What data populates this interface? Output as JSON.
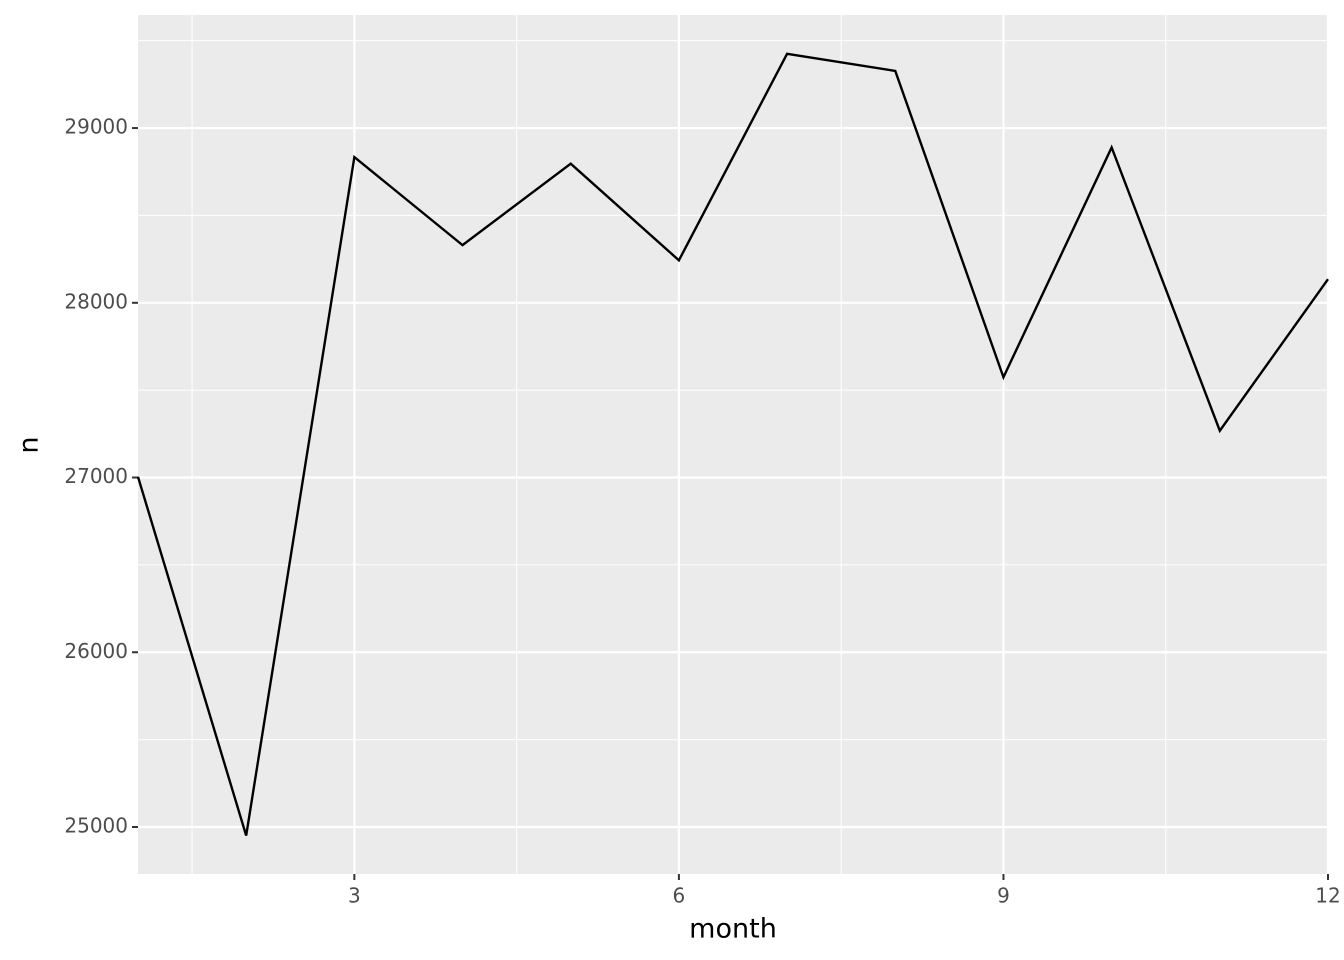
{
  "chart_data": {
    "type": "line",
    "x_label": "month",
    "y_label": "n",
    "x": [
      1,
      2,
      3,
      4,
      5,
      6,
      7,
      8,
      9,
      10,
      11,
      12
    ],
    "series": [
      {
        "color": "#000000",
        "values": [
          27004,
          24951,
          28834,
          28330,
          28796,
          28243,
          29425,
          29327,
          27574,
          28889,
          27268,
          28135
        ]
      }
    ],
    "xlim": [
      1,
      12
    ],
    "xticks": [
      3,
      6,
      9,
      12
    ],
    "xminor": [
      1.5,
      4.5,
      7.5,
      10.5
    ],
    "ylim": [
      24731,
      29647
    ],
    "yticks": [
      25000,
      26000,
      27000,
      28000,
      29000
    ],
    "yminor": [
      25500,
      26500,
      27500,
      28500,
      29500
    ],
    "grid": true
  }
}
